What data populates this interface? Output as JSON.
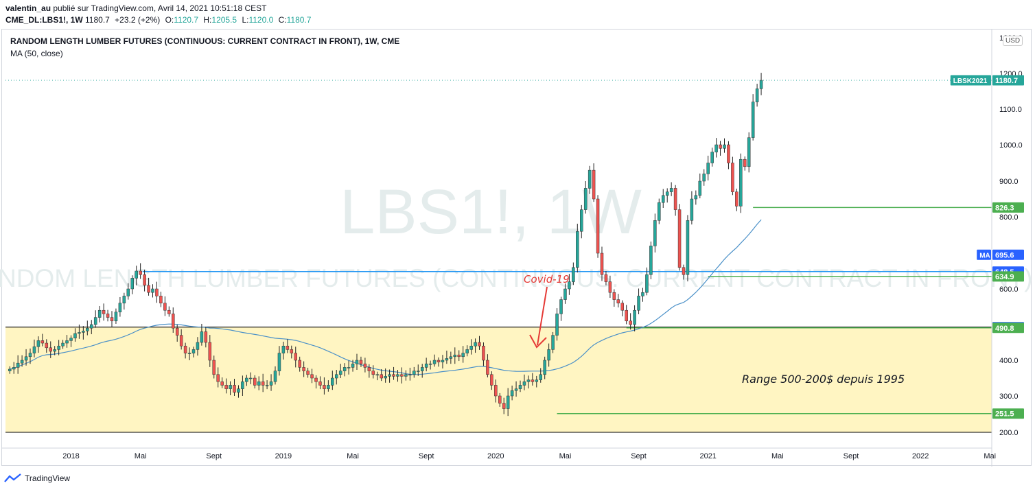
{
  "header": {
    "author": "valentin_au",
    "published": "publié sur TradingView.com, Avril 14, 2021 10:51:18 CEST",
    "symbol": "CME_DL:LBS1!, 1W",
    "last": "1180.7",
    "change": "+23.2 (+2%)",
    "o_label": "O:",
    "o_value": "1120.7",
    "h_label": "H:",
    "h_value": "1205.5",
    "l_label": "L:",
    "l_value": "1120.0",
    "c_label": "C:",
    "c_value": "1180.7"
  },
  "legend": {
    "title": "RANDOM LENGTH LUMBER FUTURES (CONTINUOUS: CURRENT CONTRACT IN FRONT), 1W, CME",
    "indicator": "MA (50, close)"
  },
  "watermark": {
    "symbol": "LBS1!, 1W",
    "name": "RANDOM LENGTH LUMBER FUTURES (CONTINUOUS: CURRENT CONTRACT IN FRONT)"
  },
  "currency": "USD",
  "annotations": {
    "covid": "Covid-19",
    "range": "Range 500-200$ depuis 1995"
  },
  "price_tags": [
    {
      "label": "LBSK2021",
      "value": "1180.7",
      "price": 1180.7,
      "color": "#26a69a"
    },
    {
      "label": "",
      "value": "826.3",
      "price": 826.3,
      "color": "#4caf50"
    },
    {
      "label": "MA",
      "value": "695.6",
      "price": 695.6,
      "color": "#2962ff"
    },
    {
      "label": "",
      "value": "648.5",
      "price": 648.5,
      "color": "#2962ff"
    },
    {
      "label": "",
      "value": "634.9",
      "price": 634.9,
      "color": "#4caf50"
    },
    {
      "label": "",
      "value": "492.9",
      "price": 492.9,
      "color": "#2962ff"
    },
    {
      "label": "",
      "value": "490.8",
      "price": 490.8,
      "color": "#4caf50"
    },
    {
      "label": "",
      "value": "251.5",
      "price": 251.5,
      "color": "#4caf50"
    }
  ],
  "footer": {
    "brand": "TradingView"
  },
  "colors": {
    "up": "#26a69a",
    "down": "#ef5350",
    "ma": "#4a90c8",
    "range_fill": "#fff5c2",
    "hline_blue": "#2196f3",
    "hline_green": "#4caf50"
  },
  "chart_data": {
    "type": "candlestick",
    "title": "RANDOM LENGTH LUMBER FUTURES (CONTINUOUS: CURRENT CONTRACT IN FRONT), 1W, CME",
    "ylim": [
      200,
      1300
    ],
    "y_ticks": [
      200,
      300,
      400,
      600,
      800,
      900,
      1000,
      1100,
      1200,
      1300
    ],
    "y_tick_labels": [
      "200.0",
      "300.0",
      "400.0",
      "600.0",
      "800.0",
      "900.0",
      "1000.0",
      "1100.0",
      "1200.0",
      "1300.0"
    ],
    "x_ticks": [
      "2018",
      "Mai",
      "Sept",
      "2019",
      "Mai",
      "Sept",
      "2020",
      "Mai",
      "Sept",
      "2021",
      "Mai",
      "Sept",
      "2022",
      "Mai"
    ],
    "x_tick_weeks": [
      0,
      17,
      35,
      52,
      69,
      87,
      104,
      121,
      139,
      156,
      173,
      191,
      208,
      225
    ],
    "start_week": -15,
    "closes": [
      375,
      380,
      392,
      400,
      410,
      420,
      438,
      455,
      448,
      435,
      425,
      430,
      440,
      448,
      455,
      462,
      475,
      478,
      482,
      490,
      500,
      520,
      540,
      530,
      520,
      510,
      535,
      560,
      580,
      600,
      630,
      650,
      640,
      610,
      590,
      600,
      580,
      560,
      540,
      530,
      490,
      470,
      440,
      420,
      420,
      430,
      450,
      480,
      450,
      400,
      360,
      340,
      330,
      320,
      330,
      310,
      320,
      340,
      350,
      350,
      330,
      340,
      330,
      330,
      340,
      370,
      420,
      440,
      430,
      420,
      400,
      380,
      370,
      360,
      350,
      340,
      330,
      320,
      330,
      350,
      360,
      370,
      380,
      380,
      390,
      400,
      390,
      380,
      370,
      360,
      360,
      350,
      355,
      360,
      355,
      360,
      355,
      360,
      360,
      370,
      370,
      380,
      390,
      390,
      400,
      395,
      400,
      405,
      410,
      415,
      410,
      420,
      430,
      440,
      450,
      440,
      400,
      360,
      330,
      300,
      280,
      265,
      300,
      315,
      320,
      330,
      340,
      345,
      340,
      345,
      360,
      400,
      430,
      470,
      530,
      570,
      600,
      620,
      660,
      760,
      820,
      880,
      930,
      850,
      700,
      640,
      620,
      590,
      570,
      560,
      540,
      510,
      500,
      540,
      580,
      590,
      640,
      720,
      790,
      840,
      860,
      870,
      880,
      820,
      660,
      640,
      790,
      850,
      860,
      900,
      920,
      950,
      980,
      1000,
      990,
      1000,
      950,
      870,
      830,
      960,
      940,
      1020,
      1120,
      1157,
      1180.7
    ],
    "ma_visible_from_week": 0,
    "last_price": 1180.7,
    "resistance": 648.5,
    "support_levels": [
      492.9,
      490.8,
      251.5,
      634.9,
      826.3
    ],
    "moving_average": "MA (50, close)",
    "range_zone": [
      200,
      492.9
    ]
  }
}
